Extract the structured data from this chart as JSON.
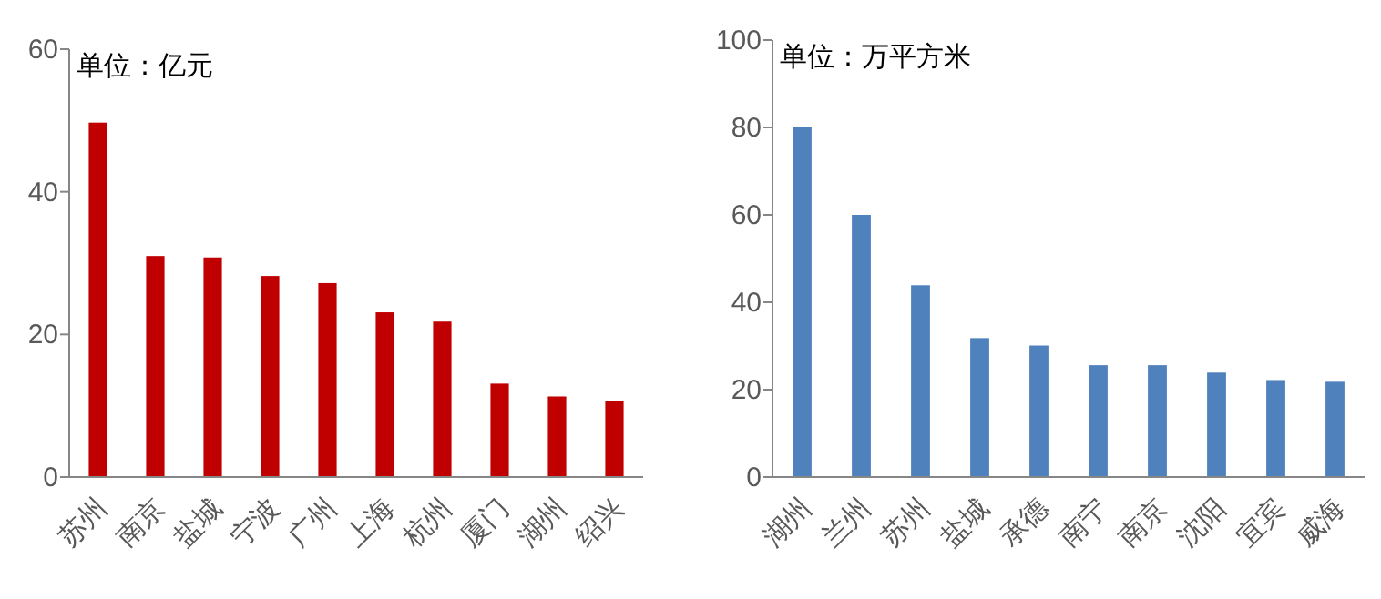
{
  "chart_data": [
    {
      "type": "bar",
      "ylabel": "单位：亿元",
      "categories": [
        "苏州",
        "南京",
        "盐城",
        "宁波",
        "广州",
        "上海",
        "杭州",
        "厦门",
        "湖州",
        "绍兴"
      ],
      "values": [
        49.7,
        31.0,
        30.8,
        28.2,
        27.2,
        23.1,
        21.8,
        13.1,
        11.3,
        10.6
      ],
      "color": "#c00000",
      "ylim": [
        0,
        60
      ],
      "yticks": [
        0,
        20,
        40,
        60
      ]
    },
    {
      "type": "bar",
      "ylabel": "单位：万平方米",
      "categories": [
        "湖州",
        "兰州",
        "苏州",
        "盐城",
        "承德",
        "南宁",
        "南京",
        "沈阳",
        "宜宾",
        "威海"
      ],
      "values": [
        80.0,
        60.0,
        43.9,
        31.8,
        30.1,
        25.6,
        25.6,
        23.9,
        22.2,
        21.8
      ],
      "color": "#4f81bd",
      "ylim": [
        0,
        100
      ],
      "yticks": [
        0,
        20,
        40,
        60,
        80,
        100
      ]
    }
  ]
}
